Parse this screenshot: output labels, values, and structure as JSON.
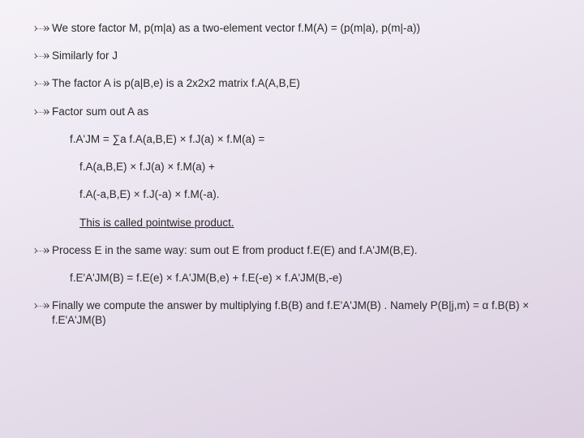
{
  "bullets": {
    "b1": "We store factor M, p(m|a) as a two-element vector f.M(A) = (p(m|a), p(m|-a))",
    "b2": "Similarly for J",
    "b3": "The factor A is p(a|B,e) is a 2x2x2 matrix f.A(A,B,E)",
    "b4": "Factor sum out A as",
    "b5": "Process E in the same way: sum out E from product f.E(E) and f.A'JM(B,E).",
    "b6": "Finally we compute the answer by multiplying f.B(B) and f.E'A'JM(B) . Namely P(B|j,m) =  α f.B(B) × f.E'A'JM(B)"
  },
  "subs": {
    "s1": "f.A'JM = ∑a f.A(a,B,E) × f.J(a) × f.M(a) =",
    "s2": "f.A(a,B,E) × f.J(a) × f.M(a) +",
    "s3": "f.A(-a,B,E) × f.J(-a) × f.M(-a).",
    "s4": "This is called pointwise product.",
    "s5": "f.E'A'JM(B) = f.E(e) × f.A'JM(B,e) + f.E(-e) × f.A'JM(B,-e)"
  },
  "style": {
    "bg_gradient": [
      "#f5f2f7",
      "#ede8f2",
      "#e3dae8",
      "#dacedf"
    ],
    "text_color": "#2a2a2a",
    "font_size_pt": 10,
    "bullet_glyph": "d"
  }
}
